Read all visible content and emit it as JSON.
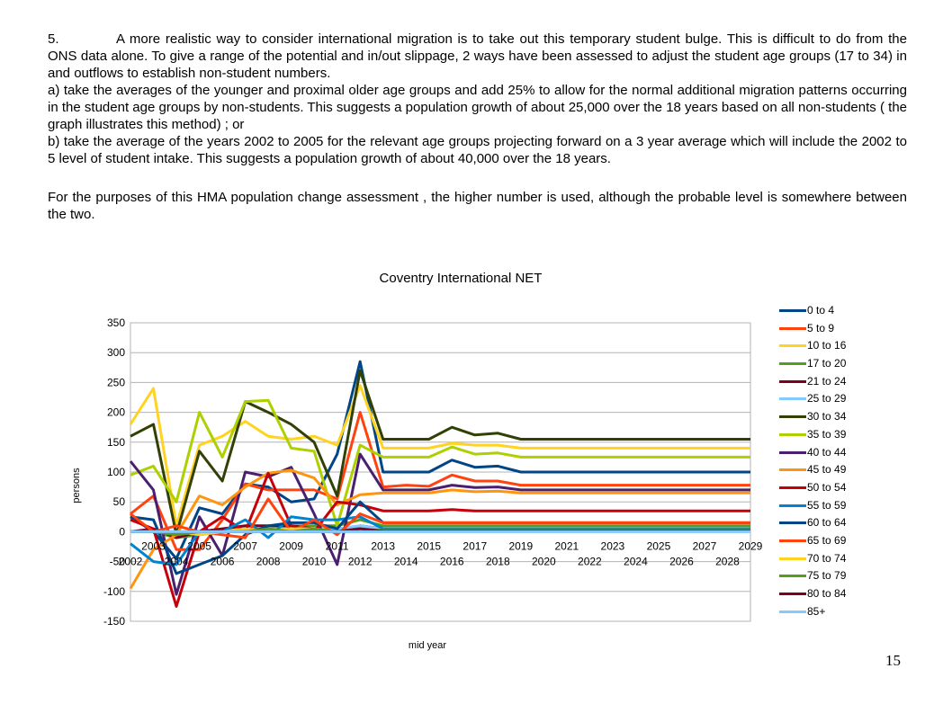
{
  "text": {
    "p1_num": "5.",
    "p1": "A more realistic way to consider international migration is to take out this temporary student bulge. This is difficult to do from the ONS data alone. To give a range of the potential and in/out slippage, 2 ways have been assessed to adjust the student age groups (17 to 34) in and outflows to establish non-student numbers.",
    "p2": "a) take the averages of the younger and proximal older age groups and add 25% to allow for the normal additional migration patterns occurring in the student age groups by non-students. This suggests a population growth of about 25,000 over the 18 years based on all non-students ( the graph illustrates this method) ; or",
    "p3": "b) take the average of the years 2002 to 2005 for the relevant age groups projecting forward on a 3 year average which will include the 2002 to 5 level of student intake. This suggests a population growth of about 40,000 over the 18 years.",
    "p4": "For the purposes of this HMA population change assessment , the higher number is used, although the probable level is somewhere between the two.",
    "page_number": "15"
  },
  "chart_data": {
    "type": "line",
    "title": "Coventry International NET",
    "xlabel": "mid year",
    "ylabel": "persons",
    "ylim": [
      -150,
      350
    ],
    "yticks": [
      -150,
      -100,
      -50,
      0,
      50,
      100,
      150,
      200,
      250,
      300,
      350
    ],
    "ytick_labels": [
      "-150",
      "-100",
      "-50",
      "0",
      "50",
      "100",
      "150",
      "200",
      "250",
      "300",
      "350"
    ],
    "x": [
      2002,
      2003,
      2004,
      2005,
      2006,
      2007,
      2008,
      2009,
      2010,
      2011,
      2012,
      2013,
      2014,
      2015,
      2016,
      2017,
      2018,
      2019,
      2020,
      2021,
      2022,
      2023,
      2024,
      2025,
      2026,
      2027,
      2028,
      2029
    ],
    "xtick_top": [
      "2003",
      "2005",
      "2007",
      "2009",
      "2011",
      "2013",
      "2015",
      "2017",
      "2019",
      "2021",
      "2023",
      "2025",
      "2027",
      "2029"
    ],
    "xtick_bottom": [
      "2002",
      "2004",
      "2006",
      "2008",
      "2010",
      "2012",
      "2014",
      "2016",
      "2018",
      "2020",
      "2022",
      "2024",
      "2026",
      "2028"
    ],
    "grid": true,
    "legend_position": "right",
    "series": [
      {
        "name": "0 to 4",
        "color": "#004586",
        "values": [
          25,
          0,
          -45,
          40,
          30,
          80,
          75,
          50,
          55,
          130,
          285,
          100,
          100,
          100,
          120,
          108,
          110,
          100,
          100,
          100,
          100,
          100,
          100,
          100,
          100,
          100,
          100,
          100
        ]
      },
      {
        "name": "5 to 9",
        "color": "#ff420e",
        "values": [
          30,
          60,
          -30,
          -30,
          20,
          80,
          70,
          70,
          70,
          55,
          200,
          75,
          78,
          76,
          95,
          85,
          85,
          78,
          78,
          78,
          78,
          78,
          78,
          78,
          78,
          78,
          78,
          78
        ]
      },
      {
        "name": "10 to 16",
        "color": "#ffd320",
        "values": [
          180,
          240,
          10,
          145,
          160,
          185,
          160,
          155,
          160,
          145,
          245,
          140,
          140,
          140,
          148,
          145,
          145,
          140,
          140,
          140,
          140,
          140,
          140,
          140,
          140,
          140,
          140,
          140
        ]
      },
      {
        "name": "17 to 20",
        "color": "#579d1c",
        "values": [
          0,
          0,
          -10,
          -5,
          0,
          5,
          5,
          10,
          10,
          10,
          20,
          10,
          10,
          10,
          10,
          10,
          10,
          10,
          10,
          10,
          10,
          10,
          10,
          10,
          10,
          10,
          10,
          10
        ]
      },
      {
        "name": "21 to 24",
        "color": "#7e0021",
        "values": [
          0,
          5,
          -10,
          0,
          5,
          10,
          10,
          10,
          5,
          0,
          10,
          5,
          5,
          5,
          5,
          5,
          5,
          5,
          5,
          5,
          5,
          5,
          5,
          5,
          5,
          5,
          5,
          5
        ]
      },
      {
        "name": "25 to 29",
        "color": "#83caff",
        "values": [
          0,
          0,
          -5,
          0,
          0,
          5,
          5,
          5,
          5,
          5,
          10,
          5,
          5,
          5,
          5,
          5,
          5,
          5,
          5,
          5,
          5,
          5,
          5,
          5,
          5,
          5,
          5,
          5
        ]
      },
      {
        "name": "30 to 34",
        "color": "#314004",
        "values": [
          160,
          180,
          -5,
          135,
          85,
          218,
          200,
          180,
          150,
          60,
          270,
          155,
          155,
          155,
          175,
          162,
          165,
          155,
          155,
          155,
          155,
          155,
          155,
          155,
          155,
          155,
          155,
          155
        ]
      },
      {
        "name": "35 to 39",
        "color": "#aecf00",
        "values": [
          95,
          110,
          50,
          200,
          125,
          218,
          220,
          140,
          135,
          10,
          145,
          125,
          125,
          125,
          142,
          130,
          132,
          125,
          125,
          125,
          125,
          125,
          125,
          125,
          125,
          125,
          125,
          125
        ]
      },
      {
        "name": "40 to 44",
        "color": "#4b1f6f",
        "values": [
          118,
          70,
          -105,
          25,
          -40,
          100,
          92,
          108,
          30,
          -55,
          130,
          70,
          70,
          70,
          78,
          74,
          75,
          70,
          70,
          70,
          70,
          70,
          70,
          70,
          70,
          70,
          70,
          70
        ]
      },
      {
        "name": "45 to 49",
        "color": "#ff950e",
        "values": [
          -95,
          -30,
          -5,
          60,
          45,
          75,
          98,
          103,
          90,
          45,
          62,
          65,
          65,
          65,
          70,
          67,
          68,
          65,
          65,
          65,
          65,
          65,
          65,
          65,
          65,
          65,
          65,
          65
        ]
      },
      {
        "name": "50 to 54",
        "color": "#c5000b",
        "values": [
          20,
          5,
          -125,
          0,
          25,
          0,
          98,
          10,
          0,
          50,
          45,
          35,
          35,
          35,
          37,
          35,
          35,
          35,
          35,
          35,
          35,
          35,
          35,
          35,
          35,
          35,
          35,
          35
        ]
      },
      {
        "name": "55 to 59",
        "color": "#0084d1",
        "values": [
          -20,
          -50,
          -55,
          0,
          0,
          20,
          -10,
          25,
          20,
          20,
          25,
          5,
          5,
          5,
          5,
          5,
          5,
          5,
          5,
          5,
          5,
          5,
          5,
          5,
          5,
          5,
          5,
          5
        ]
      },
      {
        "name": "60 to 64",
        "color": "#004586",
        "values": [
          25,
          20,
          -70,
          -55,
          -40,
          -5,
          10,
          15,
          15,
          5,
          50,
          15,
          15,
          15,
          15,
          15,
          15,
          15,
          15,
          15,
          15,
          15,
          15,
          15,
          15,
          15,
          15,
          15
        ]
      },
      {
        "name": "65 to 69",
        "color": "#ff420e",
        "values": [
          30,
          0,
          10,
          0,
          -5,
          -10,
          55,
          0,
          20,
          -5,
          30,
          15,
          15,
          15,
          15,
          15,
          15,
          15,
          15,
          15,
          15,
          15,
          15,
          15,
          15,
          15,
          15,
          15
        ]
      },
      {
        "name": "70 to 74",
        "color": "#ffd320",
        "values": [
          0,
          0,
          0,
          -5,
          0,
          5,
          0,
          5,
          5,
          0,
          5,
          2,
          2,
          2,
          2,
          2,
          2,
          2,
          2,
          2,
          2,
          2,
          2,
          2,
          2,
          2,
          2,
          2
        ]
      },
      {
        "name": "75 to 79",
        "color": "#579d1c",
        "values": [
          0,
          0,
          -5,
          0,
          0,
          0,
          5,
          0,
          5,
          0,
          5,
          2,
          2,
          2,
          2,
          2,
          2,
          2,
          2,
          2,
          2,
          2,
          2,
          2,
          2,
          2,
          2,
          2
        ]
      },
      {
        "name": "80 to 84",
        "color": "#7e0021",
        "values": [
          0,
          0,
          0,
          0,
          0,
          0,
          0,
          0,
          0,
          0,
          5,
          1,
          1,
          1,
          1,
          1,
          1,
          1,
          1,
          1,
          1,
          1,
          1,
          1,
          1,
          1,
          1,
          1
        ]
      },
      {
        "name": "85+",
        "color": "#83caff",
        "values": [
          0,
          0,
          0,
          0,
          0,
          0,
          0,
          0,
          0,
          0,
          0,
          0,
          0,
          0,
          0,
          0,
          0,
          0,
          0,
          0,
          0,
          0,
          0,
          0,
          0,
          0,
          0,
          0
        ]
      }
    ]
  }
}
